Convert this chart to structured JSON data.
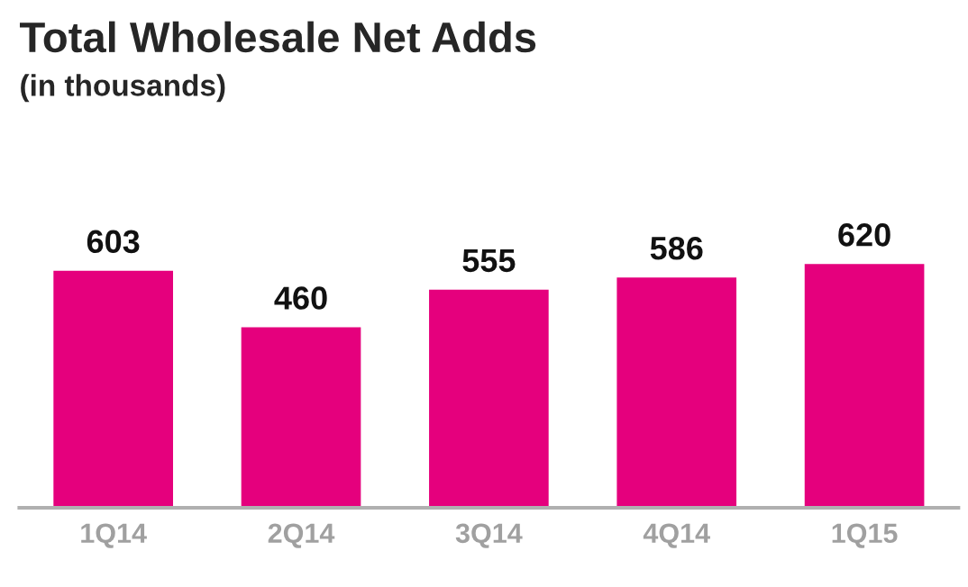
{
  "chart_data": {
    "type": "bar",
    "title": "Total Wholesale Net Adds",
    "subtitle": "(in thousands)",
    "categories": [
      "1Q14",
      "2Q14",
      "3Q14",
      "4Q14",
      "1Q15"
    ],
    "values": [
      603,
      460,
      555,
      586,
      620
    ],
    "color": "#e5007d",
    "data_labels": true,
    "grid": false,
    "legend": false
  }
}
